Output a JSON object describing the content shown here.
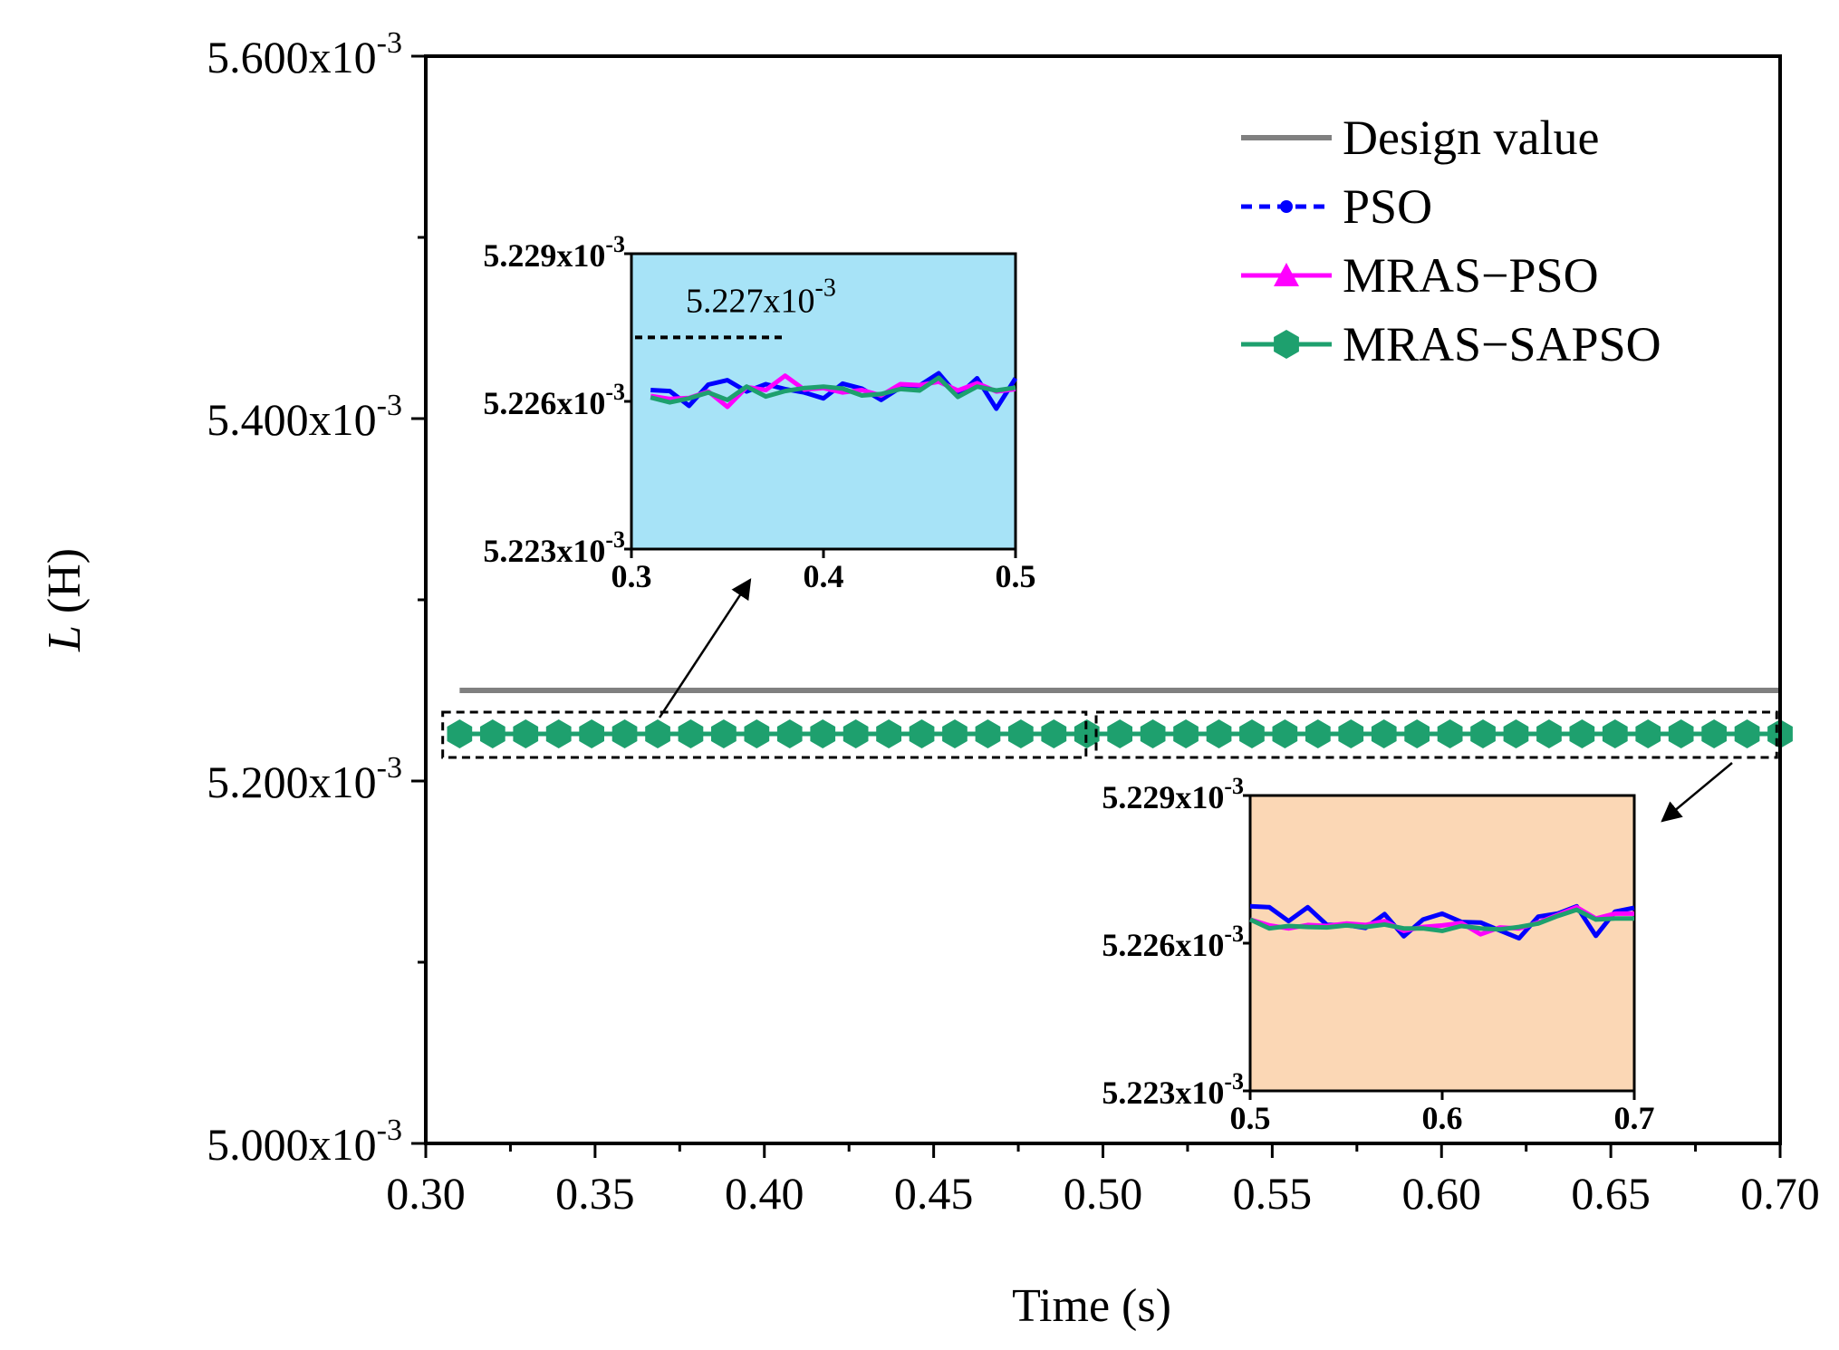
{
  "chart_data": {
    "type": "line",
    "xlabel": "Time (s)",
    "ylabel_italic": "L",
    "ylabel_unit": " (H)",
    "xlim": [
      0.3,
      0.7
    ],
    "ylim": [
      0.005,
      0.0056
    ],
    "x_ticks": [
      "0.30",
      "0.35",
      "0.40",
      "0.45",
      "0.50",
      "0.55",
      "0.60",
      "0.65",
      "0.70"
    ],
    "x_tick_values": [
      0.3,
      0.35,
      0.4,
      0.45,
      0.5,
      0.55,
      0.6,
      0.65,
      0.7
    ],
    "y_ticks": [
      {
        "value": 0.005,
        "mant": "5.000x10",
        "exp": "-3"
      },
      {
        "value": 0.0052,
        "mant": "5.200x10",
        "exp": "-3"
      },
      {
        "value": 0.0054,
        "mant": "5.400x10",
        "exp": "-3"
      },
      {
        "value": 0.0056,
        "mant": "5.600x10",
        "exp": "-3"
      }
    ],
    "y_minor_ticks": [
      0.0051,
      0.0053,
      0.0055
    ],
    "legend": {
      "position": "top-right",
      "entries": [
        {
          "name": "Design value",
          "color": "#808080",
          "style": "solid",
          "marker": "none"
        },
        {
          "name": "PSO",
          "color": "#0000ff",
          "style": "dashed",
          "marker": "circle"
        },
        {
          "name": "MRAS−PSO",
          "color": "#ff00ff",
          "style": "solid",
          "marker": "triangle"
        },
        {
          "name": "MRAS−SAPSO",
          "color": "#1ea06e",
          "style": "solid",
          "marker": "hexagon"
        }
      ]
    },
    "series": [
      {
        "name": "Design value",
        "color": "#808080",
        "x_start": 0.31,
        "x_end": 0.7,
        "value": 0.00525
      },
      {
        "name": "PSO",
        "color": "#0000ff",
        "x_start": 0.31,
        "x_end": 0.7,
        "x_step": 0.01,
        "value": 0.005226
      },
      {
        "name": "MRAS−PSO",
        "color": "#ff00ff",
        "x_start": 0.31,
        "x_end": 0.7,
        "x_step": 0.01,
        "value": 0.005226
      },
      {
        "name": "MRAS−SAPSO",
        "color": "#1ea06e",
        "x_start": 0.31,
        "x_end": 0.7,
        "x_step": 0.01,
        "value": 0.005226
      }
    ],
    "insets": [
      {
        "id": "inset-1",
        "background": "#a7e3f7",
        "xlim": [
          0.3,
          0.5
        ],
        "ylim": [
          0.005223,
          0.005229
        ],
        "x_ticks": [
          "0.3",
          "0.4",
          "0.5"
        ],
        "x_tick_values": [
          0.3,
          0.4,
          0.5
        ],
        "y_ticks": [
          {
            "value": 0.005229,
            "mant": "5.229x10",
            "exp": "-3"
          },
          {
            "value": 0.005226,
            "mant": "5.226x10",
            "exp": "-3"
          },
          {
            "value": 0.005223,
            "mant": "5.223x10",
            "exp": "-3"
          }
        ],
        "annotation": {
          "mant": "5.227x10",
          "exp": "-3",
          "value": 0.0052273,
          "x_from": 0.3,
          "x_to": 0.38
        },
        "x": [
          0.31,
          0.32,
          0.33,
          0.34,
          0.35,
          0.36,
          0.37,
          0.38,
          0.39,
          0.4,
          0.41,
          0.42,
          0.43,
          0.44,
          0.45,
          0.46,
          0.47,
          0.48,
          0.49,
          0.5
        ],
        "series": [
          {
            "name": "PSO",
            "color": "#0000ff",
            "values": [
              5.22623,
              5.22621,
              5.22591,
              5.22634,
              5.22643,
              5.2262,
              5.22635,
              5.22625,
              5.22618,
              5.22606,
              5.22636,
              5.22626,
              5.22603,
              5.22628,
              5.22632,
              5.22657,
              5.22611,
              5.22647,
              5.22585,
              5.22647
            ]
          },
          {
            "name": "MRAS−PSO",
            "color": "#ff00ff",
            "values": [
              5.22611,
              5.22605,
              5.22607,
              5.2262,
              5.22589,
              5.22629,
              5.22623,
              5.22652,
              5.22624,
              5.22627,
              5.22618,
              5.22623,
              5.22612,
              5.22635,
              5.22633,
              5.2264,
              5.22622,
              5.22637,
              5.2262,
              5.22625
            ]
          },
          {
            "name": "MRAS−SAPSO",
            "color": "#1ea06e",
            "values": [
              5.22608,
              5.22598,
              5.22606,
              5.22618,
              5.22603,
              5.2263,
              5.2261,
              5.22621,
              5.22627,
              5.2263,
              5.22626,
              5.22612,
              5.22615,
              5.22625,
              5.22622,
              5.22648,
              5.22609,
              5.2263,
              5.22622,
              5.22628
            ]
          }
        ]
      },
      {
        "id": "inset-2",
        "background": "#fbd7b5",
        "xlim": [
          0.5,
          0.7
        ],
        "ylim": [
          0.005223,
          0.005229
        ],
        "x_ticks": [
          "0.5",
          "0.6",
          "0.7"
        ],
        "x_tick_values": [
          0.5,
          0.6,
          0.7
        ],
        "y_ticks": [
          {
            "value": 0.005229,
            "mant": "5.229x10",
            "exp": "-3"
          },
          {
            "value": 0.005226,
            "mant": "5.226x10",
            "exp": "-3"
          },
          {
            "value": 0.005223,
            "mant": "5.223x10",
            "exp": "-3"
          }
        ],
        "x": [
          0.5,
          0.51,
          0.52,
          0.53,
          0.54,
          0.55,
          0.56,
          0.57,
          0.58,
          0.59,
          0.6,
          0.61,
          0.62,
          0.63,
          0.64,
          0.65,
          0.66,
          0.67,
          0.68,
          0.69,
          0.7
        ],
        "series": [
          {
            "name": "PSO",
            "color": "#0000ff",
            "values": [
              5.22675,
              5.22673,
              5.22645,
              5.22673,
              5.22637,
              5.22637,
              5.22631,
              5.22659,
              5.22614,
              5.22648,
              5.2266,
              5.22643,
              5.22642,
              5.22626,
              5.2261,
              5.22654,
              5.2266,
              5.22675,
              5.22615,
              5.22664,
              5.22672
            ]
          },
          {
            "name": "MRAS−PSO",
            "color": "#ff00ff",
            "values": [
              5.22648,
              5.22636,
              5.2263,
              5.22637,
              5.22635,
              5.2264,
              5.22637,
              5.22645,
              5.22625,
              5.22633,
              5.22636,
              5.22641,
              5.22618,
              5.22632,
              5.2263,
              5.22642,
              5.22657,
              5.22673,
              5.2265,
              5.2266,
              5.2266
            ]
          },
          {
            "name": "MRAS−SAPSO",
            "color": "#1ea06e",
            "values": [
              5.22648,
              5.2263,
              5.22635,
              5.22633,
              5.22632,
              5.22636,
              5.22633,
              5.22638,
              5.2263,
              5.2263,
              5.22625,
              5.22635,
              5.2263,
              5.22628,
              5.22633,
              5.2264,
              5.22655,
              5.22668,
              5.22648,
              5.2265,
              5.2265
            ]
          }
        ]
      }
    ]
  }
}
